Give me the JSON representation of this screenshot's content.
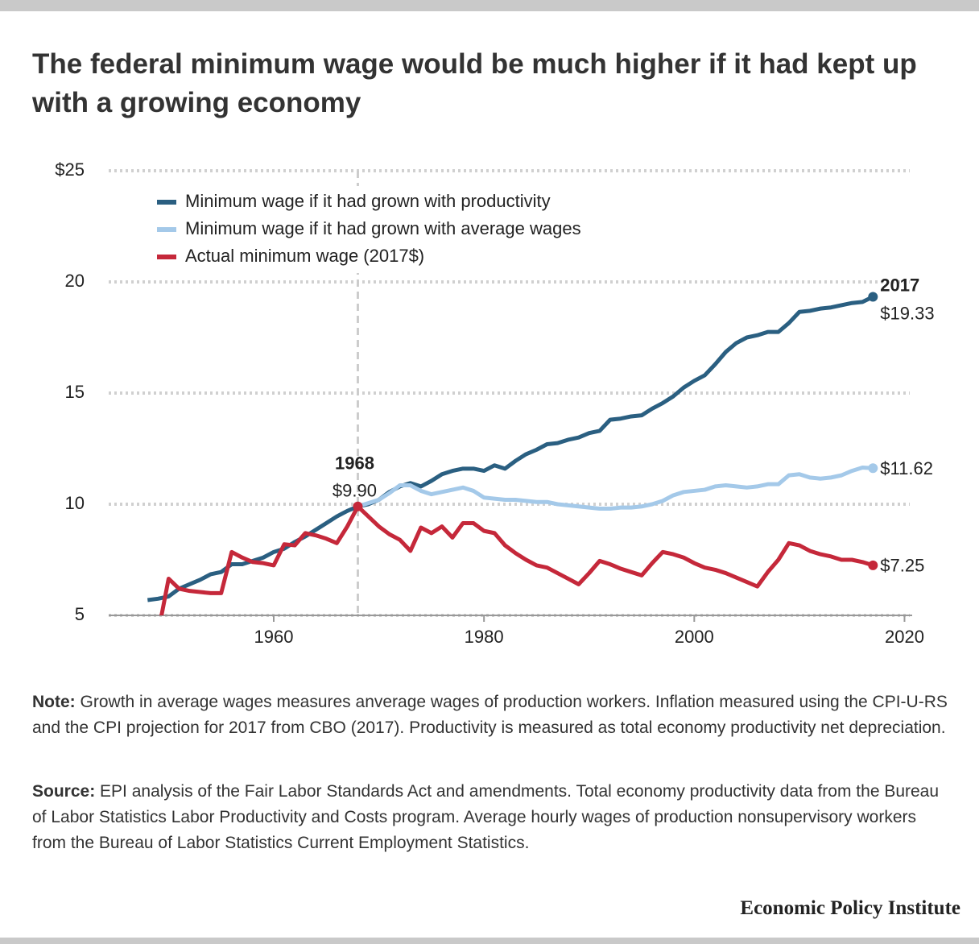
{
  "chart_data": {
    "type": "line",
    "title": "The federal minimum wage would be much higher if it had kept up with a growing economy",
    "x": [
      1948,
      1949,
      1950,
      1951,
      1952,
      1953,
      1954,
      1955,
      1956,
      1957,
      1958,
      1959,
      1960,
      1961,
      1962,
      1963,
      1964,
      1965,
      1966,
      1967,
      1968,
      1969,
      1970,
      1971,
      1972,
      1973,
      1974,
      1975,
      1976,
      1977,
      1978,
      1979,
      1980,
      1981,
      1982,
      1983,
      1984,
      1985,
      1986,
      1987,
      1988,
      1989,
      1990,
      1991,
      1992,
      1993,
      1994,
      1995,
      1996,
      1997,
      1998,
      1999,
      2000,
      2001,
      2002,
      2003,
      2004,
      2005,
      2006,
      2007,
      2008,
      2009,
      2010,
      2011,
      2012,
      2013,
      2014,
      2015,
      2016,
      2017
    ],
    "series": [
      {
        "name": "Minimum wage if it had grown with productivity",
        "color": "#2a5f81",
        "values": [
          5.69,
          5.75,
          5.85,
          6.2,
          6.4,
          6.6,
          6.85,
          6.95,
          7.3,
          7.3,
          7.45,
          7.6,
          7.85,
          8.0,
          8.3,
          8.55,
          8.85,
          9.15,
          9.45,
          9.7,
          9.9,
          10.0,
          10.2,
          10.55,
          10.8,
          10.95,
          10.8,
          11.05,
          11.35,
          11.5,
          11.6,
          11.6,
          11.5,
          11.75,
          11.6,
          11.95,
          12.25,
          12.45,
          12.7,
          12.75,
          12.9,
          13.0,
          13.2,
          13.3,
          13.8,
          13.85,
          13.95,
          14.0,
          14.3,
          14.55,
          14.85,
          15.25,
          15.55,
          15.8,
          16.3,
          16.85,
          17.25,
          17.5,
          17.6,
          17.75,
          17.75,
          18.15,
          18.65,
          18.7,
          18.8,
          18.85,
          18.95,
          19.05,
          19.1,
          19.33
        ]
      },
      {
        "name": "Minimum wage if it had grown with average wages",
        "color": "#a4c9e9",
        "values": [
          null,
          null,
          null,
          null,
          null,
          null,
          null,
          null,
          null,
          null,
          null,
          null,
          null,
          null,
          null,
          null,
          null,
          null,
          null,
          null,
          9.9,
          10.05,
          10.2,
          10.5,
          10.85,
          10.85,
          10.6,
          10.45,
          10.55,
          10.65,
          10.75,
          10.6,
          10.3,
          10.25,
          10.2,
          10.2,
          10.15,
          10.1,
          10.1,
          10.0,
          9.95,
          9.9,
          9.85,
          9.8,
          9.8,
          9.85,
          9.85,
          9.9,
          10.0,
          10.15,
          10.4,
          10.55,
          10.6,
          10.65,
          10.8,
          10.85,
          10.8,
          10.75,
          10.8,
          10.9,
          10.9,
          11.3,
          11.35,
          11.2,
          11.15,
          11.2,
          11.3,
          11.5,
          11.65,
          11.62
        ]
      },
      {
        "name": "Actual minimum wage (2017$)",
        "color": "#c5283a",
        "values": [
          null,
          4.2,
          6.65,
          6.2,
          6.1,
          6.05,
          6.0,
          6.0,
          7.85,
          7.6,
          7.4,
          7.35,
          7.25,
          8.2,
          8.15,
          8.7,
          8.6,
          8.45,
          8.25,
          9.0,
          9.9,
          9.45,
          9.0,
          8.65,
          8.4,
          7.9,
          8.95,
          8.7,
          9.0,
          8.5,
          9.15,
          9.15,
          8.8,
          8.7,
          8.15,
          7.8,
          7.5,
          7.25,
          7.15,
          6.9,
          6.65,
          6.4,
          6.9,
          7.45,
          7.3,
          7.1,
          6.95,
          6.8,
          7.35,
          7.85,
          7.75,
          7.6,
          7.35,
          7.15,
          7.05,
          6.9,
          6.7,
          6.5,
          6.3,
          6.95,
          7.5,
          8.25,
          8.15,
          7.9,
          7.75,
          7.65,
          7.5,
          7.5,
          7.4,
          7.25
        ]
      }
    ],
    "xlim": [
      1944.3,
      2020.5
    ],
    "xticks": [
      1960,
      1980,
      2000,
      2020
    ],
    "ylim": [
      5,
      25
    ],
    "yticks": [
      5,
      10,
      15,
      20,
      {
        "value": 25,
        "label": "$25"
      }
    ],
    "grid": true,
    "legend": "top-left",
    "vline": 1968,
    "annotations": [
      {
        "x": 1968,
        "y": 9.9,
        "year_label": "1968",
        "label": "$9.90",
        "color": "#c5283a"
      },
      {
        "x": 2017,
        "y": 19.33,
        "year_label": "2017",
        "label": "$19.33",
        "color": "#2a5f81"
      },
      {
        "x": 2017,
        "y": 11.62,
        "label": "$11.62",
        "color": "#a4c9e9"
      },
      {
        "x": 2017,
        "y": 7.25,
        "label": "$7.25",
        "color": "#c5283a"
      }
    ]
  },
  "note": {
    "label": "Note:",
    "text": "Growth in average wages measures anverage wages of production workers. Inflation measured using the CPI-U-RS and the CPI projection for 2017 from CBO (2017). Productivity is measured as total economy productivity net depreciation."
  },
  "source": {
    "label": "Source:",
    "text": "EPI analysis of the Fair Labor Standards Act and amendments. Total economy productivity data from the Bureau of Labor Statistics Labor Productivity and Costs program. Average hourly wages of production nonsupervisory workers from the Bureau of Labor Statistics Current Employment Statistics."
  },
  "footer": "Economic Policy Institute"
}
